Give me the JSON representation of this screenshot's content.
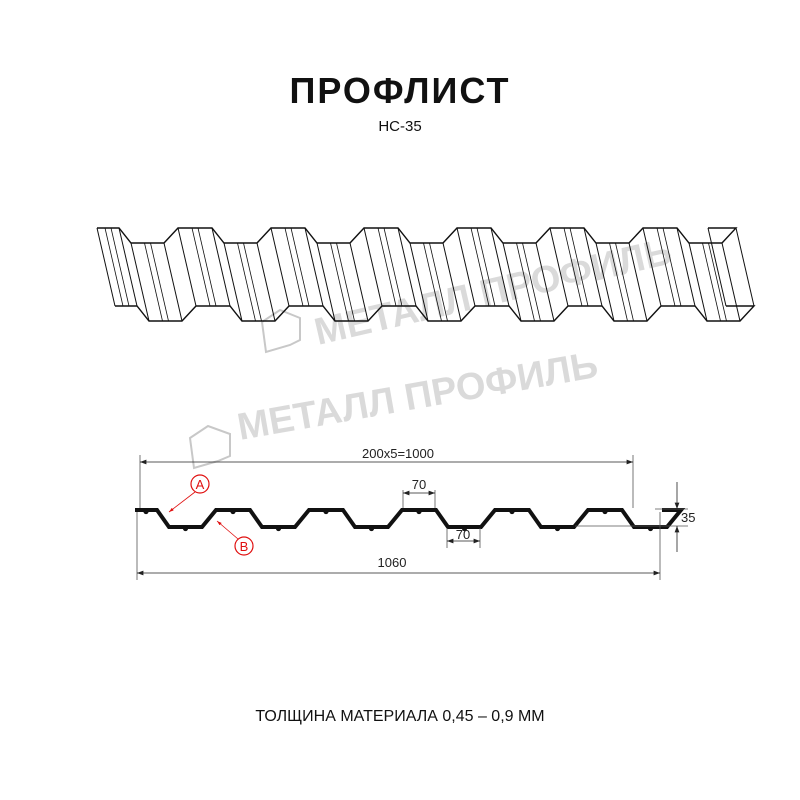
{
  "title": "ПРОФЛИСТ",
  "subtitle": "НС-35",
  "watermark": "МЕТАЛЛ ПРОФИЛЬ",
  "dimensions": {
    "pitch": "200x5=1000",
    "total_width": "1060",
    "top_flat": "70",
    "bottom_flat": "70",
    "height": "35"
  },
  "labels": {
    "a": "A",
    "b": "B"
  },
  "colors": {
    "profile": "#111111",
    "label": "#e01010",
    "watermark": "#bdbdbd"
  },
  "footer": "ТОЛЩИНА МАТЕРИАЛА 0,45 – 0,9 ММ"
}
